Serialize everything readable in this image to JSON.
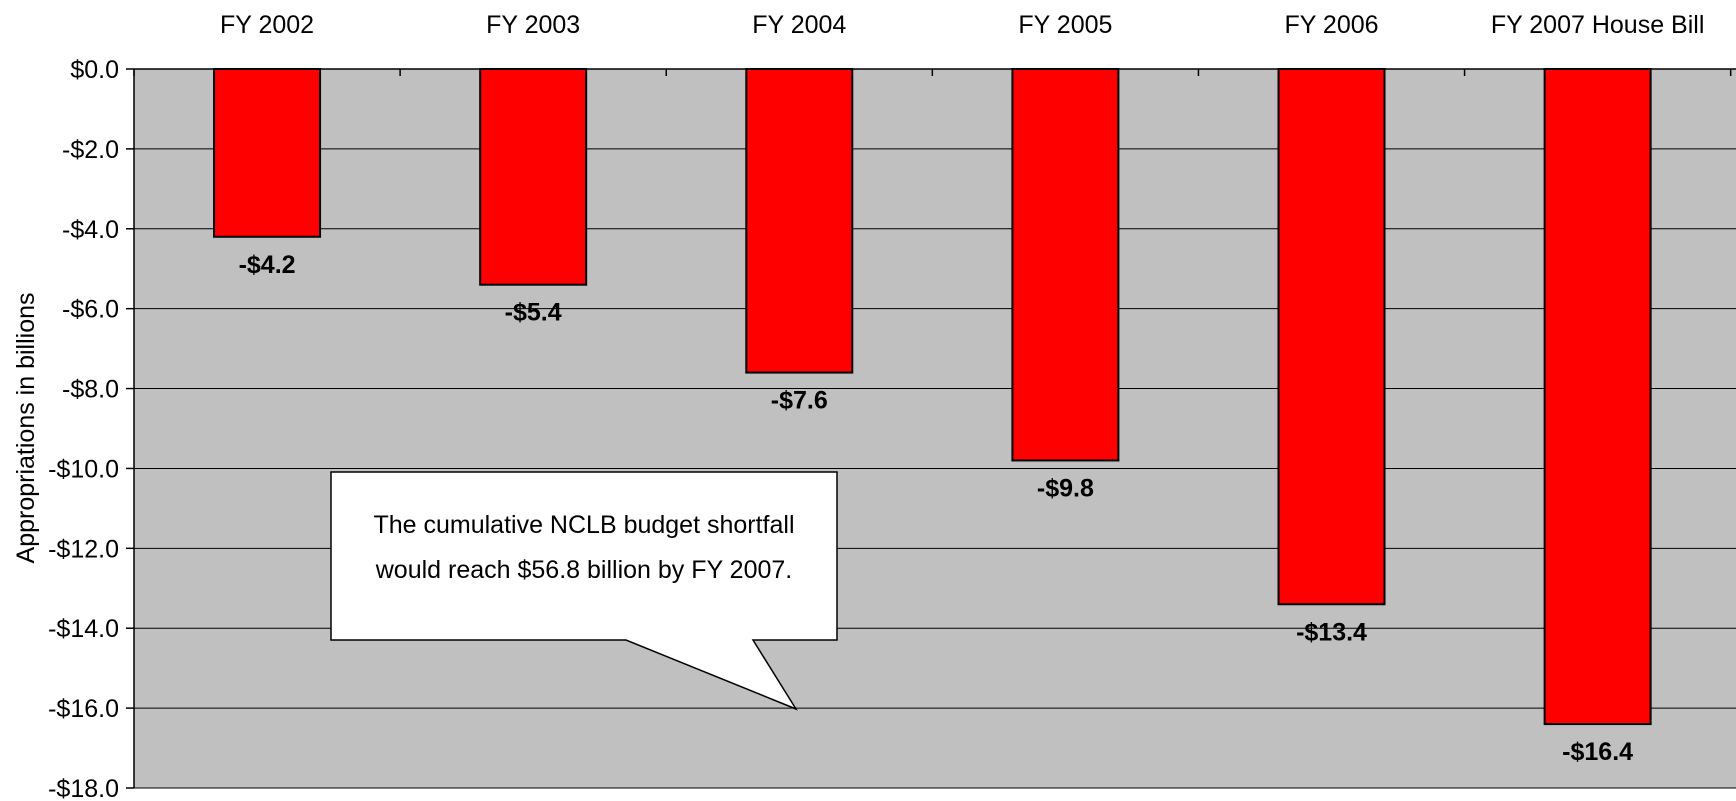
{
  "chart_data": {
    "type": "bar",
    "title": "",
    "xlabel": "",
    "ylabel": "Appropriations in billions",
    "categories": [
      "FY 2002",
      "FY 2003",
      "FY 2004",
      "FY 2005",
      "FY 2006",
      "FY 2007 House Bill"
    ],
    "values": [
      -4.2,
      -5.4,
      -7.6,
      -9.8,
      -13.4,
      -16.4
    ],
    "data_labels": [
      "-$4.2",
      "-$5.4",
      "-$7.6",
      "-$9.8",
      "-$13.4",
      "-$16.4"
    ],
    "ylim": [
      -18.0,
      0.0
    ],
    "yticks": [
      0.0,
      -2.0,
      -4.0,
      -6.0,
      -8.0,
      -10.0,
      -12.0,
      -14.0,
      -16.0,
      -18.0
    ],
    "ytick_labels": [
      "$0.0",
      "-$2.0",
      "-$4.0",
      "-$6.0",
      "-$8.0",
      "-$10.0",
      "-$12.0",
      "-$14.0",
      "-$16.0",
      "-$18.0"
    ],
    "category_axis_position": "top",
    "grid": true,
    "legend": "none",
    "bar_color": "#ff0000",
    "plot_background": "#c0c0c0",
    "annotation": {
      "lines": [
        "The cumulative NCLB budget shortfall",
        "would reach $56.8 billion by FY 2007."
      ]
    }
  }
}
